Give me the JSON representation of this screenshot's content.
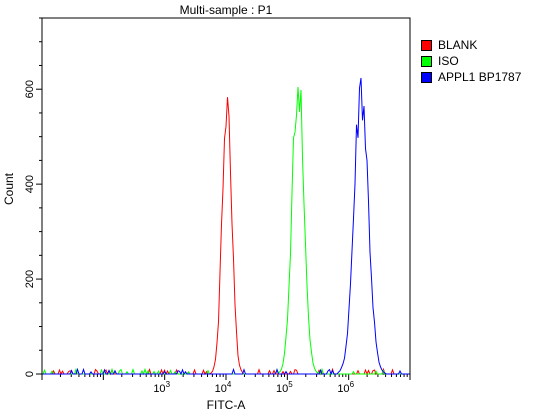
{
  "chart_data": {
    "type": "line",
    "title": "Multi-sample : P1",
    "xlabel": "FITC-A",
    "ylabel": "Count",
    "x_scale": "log",
    "xlim": [
      10,
      10000000
    ],
    "ylim": [
      0,
      750
    ],
    "x_ticks": [
      {
        "value": 1000,
        "base": "10",
        "exp": "3"
      },
      {
        "value": 10000,
        "base": "10",
        "exp": "4"
      },
      {
        "value": 100000,
        "base": "10",
        "exp": "5"
      },
      {
        "value": 1000000,
        "base": "10",
        "exp": "6"
      }
    ],
    "y_ticks": [
      0,
      200,
      400,
      600
    ],
    "legend_position": "right",
    "grid": false,
    "series": [
      {
        "name": "BLANK",
        "color": "#ff0000",
        "center": 10400,
        "peak": 600,
        "width": 0.078
      },
      {
        "name": "ISO",
        "color": "#00ff00",
        "center": 150000,
        "peak": 610,
        "width": 0.095
      },
      {
        "name": "APPL1 BP1787",
        "color": "#0000ff",
        "center": 1600000,
        "peak": 600,
        "width": 0.115
      }
    ]
  }
}
